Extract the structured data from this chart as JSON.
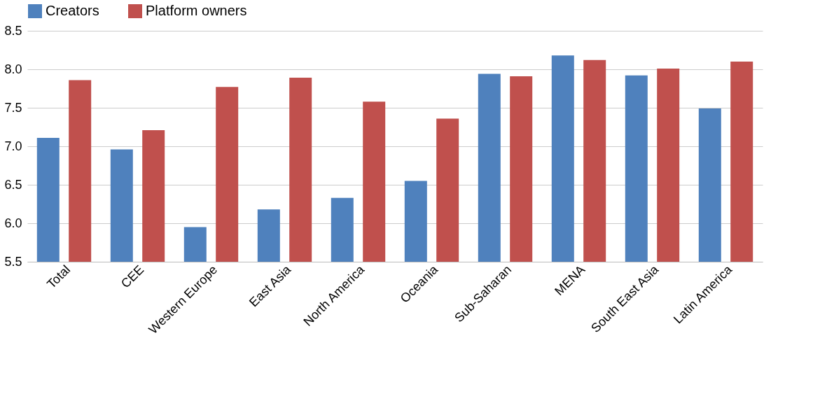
{
  "chart_data": {
    "type": "bar",
    "categories": [
      "Total",
      "CEE",
      "Western Europe",
      "East Asia",
      "North America",
      "Oceania",
      "Sub-Saharan",
      "MENA",
      "South East Asia",
      "Latin America"
    ],
    "series": [
      {
        "name": "Creators",
        "color": "#4f81bd",
        "values": [
          7.11,
          6.96,
          5.95,
          6.18,
          6.33,
          6.55,
          7.94,
          8.18,
          7.92,
          7.49
        ]
      },
      {
        "name": "Platform owners",
        "color": "#c0504d",
        "values": [
          7.86,
          7.21,
          7.77,
          7.89,
          7.58,
          7.36,
          7.91,
          8.12,
          8.01,
          8.1
        ]
      }
    ],
    "ylim": [
      5.5,
      8.5
    ],
    "yticks": [
      {
        "value": 5.5,
        "label": "5.5"
      },
      {
        "value": 6,
        "label": "6.0"
      },
      {
        "value": 6.5,
        "label": "6.5"
      },
      {
        "value": 7,
        "label": "7.0"
      },
      {
        "value": 7.5,
        "label": "7.5"
      },
      {
        "value": 8,
        "label": "8.0"
      },
      {
        "value": 8.5,
        "label": "8.5"
      }
    ],
    "grid": "y",
    "legend": "top"
  }
}
